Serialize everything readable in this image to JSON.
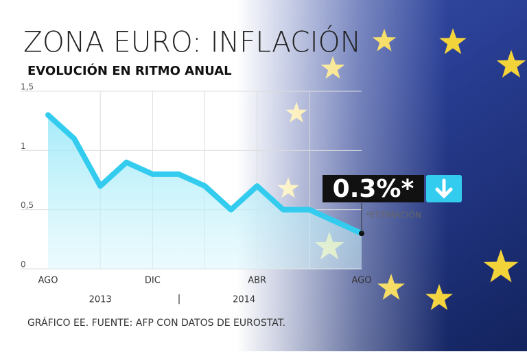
{
  "chart_data": {
    "type": "line",
    "title": "ZONA EURO: INFLACIÓN",
    "subtitle": "EVOLUCIÓN EN RITMO ANUAL",
    "categories": [
      "AGO",
      null,
      null,
      null,
      "DIC",
      null,
      null,
      null,
      "ABR",
      null,
      null,
      null,
      "AGO"
    ],
    "years": [
      "2013",
      "2014"
    ],
    "series": [
      {
        "name": "Inflación",
        "color": "#33ccee",
        "values": [
          1.3,
          1.1,
          0.7,
          0.9,
          0.8,
          0.8,
          0.7,
          0.5,
          0.7,
          0.5,
          0.5,
          0.4,
          0.3
        ]
      }
    ],
    "ylim": [
      0,
      1.5
    ],
    "yticks": [
      0,
      {
        "value": 0.5,
        "label": "0,5"
      },
      1,
      {
        "value": 1.5,
        "label": "1,5"
      }
    ],
    "grid": true,
    "annotations": [
      "0.3%*",
      "*ESTIMACIÓN"
    ],
    "source": "GRÁFICO EE. FUENTE: AFP CON DATOS DE EUROSTAT."
  }
}
